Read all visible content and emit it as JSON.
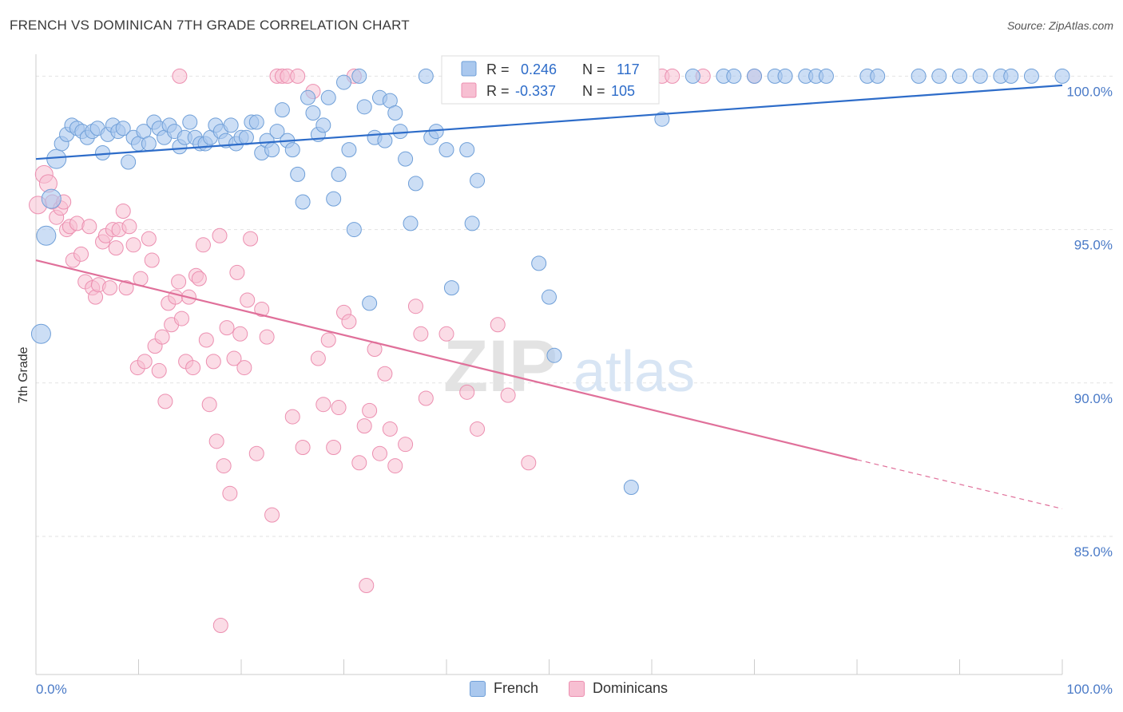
{
  "title": "FRENCH VS DOMINICAN 7TH GRADE CORRELATION CHART",
  "source": "Source: ZipAtlas.com",
  "watermark": {
    "zip": "ZIP",
    "atlas": "atlas"
  },
  "legend": {
    "r_label": "R =",
    "n_label": "N =",
    "french": {
      "r": "0.246",
      "n": "117"
    },
    "dominicans": {
      "r": "-0.337",
      "n": "105"
    }
  },
  "bottom_legend": {
    "french": "French",
    "dominicans": "Dominicans"
  },
  "colors": {
    "french_fill": "#aac8ee",
    "french_stroke": "#6f9fd8",
    "french_line": "#2d6cc9",
    "dominicans_fill": "#f7bfd2",
    "dominicans_stroke": "#ec8fb0",
    "dominicans_line": "#e0709a",
    "tick_text": "#4a7ac7"
  },
  "chart_data": {
    "type": "scatter",
    "title": "FRENCH VS DOMINICAN 7TH GRADE CORRELATION CHART",
    "xlabel": "",
    "ylabel": "7th Grade",
    "x_tick_labels": [
      "0.0%",
      "100.0%"
    ],
    "y_tick_labels": [
      "100.0%",
      "95.0%",
      "90.0%",
      "85.0%"
    ],
    "y_ticks": [
      100,
      95,
      90,
      85
    ],
    "xlim": [
      0,
      100
    ],
    "ylim": [
      80.5,
      100.4
    ],
    "grid": "horizontal dashed",
    "series": [
      {
        "name": "French",
        "trend": {
          "x": [
            0,
            100
          ],
          "y": [
            97.3,
            99.7
          ]
        },
        "points": [
          [
            0.5,
            91.6
          ],
          [
            1,
            94.8
          ],
          [
            1.5,
            96
          ],
          [
            2,
            97.3
          ],
          [
            2.5,
            97.8
          ],
          [
            3,
            98.1
          ],
          [
            3.5,
            98.4
          ],
          [
            4,
            98.3
          ],
          [
            4.5,
            98.2
          ],
          [
            5,
            98
          ],
          [
            5.5,
            98.2
          ],
          [
            6,
            98.3
          ],
          [
            6.5,
            97.5
          ],
          [
            7,
            98.1
          ],
          [
            7.5,
            98.4
          ],
          [
            8,
            98.2
          ],
          [
            8.5,
            98.3
          ],
          [
            9,
            97.2
          ],
          [
            9.5,
            98
          ],
          [
            10,
            97.8
          ],
          [
            10.5,
            98.2
          ],
          [
            11,
            97.8
          ],
          [
            11.5,
            98.5
          ],
          [
            12,
            98.3
          ],
          [
            12.5,
            98
          ],
          [
            13,
            98.4
          ],
          [
            13.5,
            98.2
          ],
          [
            14,
            97.7
          ],
          [
            14.5,
            98
          ],
          [
            15,
            98.5
          ],
          [
            15.5,
            98
          ],
          [
            16,
            97.8
          ],
          [
            16.5,
            97.8
          ],
          [
            17,
            98
          ],
          [
            17.5,
            98.4
          ],
          [
            18,
            98.2
          ],
          [
            18.5,
            97.9
          ],
          [
            19,
            98.4
          ],
          [
            19.5,
            97.8
          ],
          [
            20,
            98
          ],
          [
            20.5,
            98
          ],
          [
            21,
            98.5
          ],
          [
            21.5,
            98.5
          ],
          [
            22,
            97.5
          ],
          [
            22.5,
            97.9
          ],
          [
            23,
            97.6
          ],
          [
            23.5,
            98.2
          ],
          [
            24,
            98.9
          ],
          [
            24.5,
            97.9
          ],
          [
            25,
            97.6
          ],
          [
            25.5,
            96.8
          ],
          [
            26,
            95.9
          ],
          [
            26.5,
            99.3
          ],
          [
            27,
            98.8
          ],
          [
            27.5,
            98.1
          ],
          [
            28,
            98.4
          ],
          [
            28.5,
            99.3
          ],
          [
            29,
            96
          ],
          [
            29.5,
            96.8
          ],
          [
            30,
            99.8
          ],
          [
            30.5,
            97.6
          ],
          [
            31,
            95
          ],
          [
            31.5,
            100
          ],
          [
            32,
            99
          ],
          [
            32.5,
            92.6
          ],
          [
            33,
            98
          ],
          [
            33.5,
            99.3
          ],
          [
            34,
            97.9
          ],
          [
            34.5,
            99.2
          ],
          [
            35,
            98.8
          ],
          [
            35.5,
            98.2
          ],
          [
            36,
            97.3
          ],
          [
            36.5,
            95.2
          ],
          [
            37,
            96.5
          ],
          [
            38,
            100
          ],
          [
            38.5,
            98
          ],
          [
            39,
            98.2
          ],
          [
            40,
            97.6
          ],
          [
            40.5,
            93.1
          ],
          [
            41,
            100
          ],
          [
            42,
            97.6
          ],
          [
            42.5,
            95.2
          ],
          [
            43,
            96.6
          ],
          [
            44,
            100
          ],
          [
            46,
            100
          ],
          [
            47,
            100
          ],
          [
            49,
            93.9
          ],
          [
            49.5,
            100
          ],
          [
            50,
            92.8
          ],
          [
            50.5,
            90.9
          ],
          [
            51,
            100
          ],
          [
            53,
            100
          ],
          [
            55,
            100
          ],
          [
            56,
            100
          ],
          [
            58,
            86.6
          ],
          [
            58.5,
            100
          ],
          [
            60,
            100
          ],
          [
            61,
            98.6
          ],
          [
            64,
            100
          ],
          [
            67,
            100
          ],
          [
            68,
            100
          ],
          [
            70,
            100
          ],
          [
            72,
            100
          ],
          [
            73,
            100
          ],
          [
            75,
            100
          ],
          [
            76,
            100
          ],
          [
            77,
            100
          ],
          [
            81,
            100
          ],
          [
            82,
            100
          ],
          [
            86,
            100
          ],
          [
            88,
            100
          ],
          [
            90,
            100
          ],
          [
            92,
            100
          ],
          [
            94,
            100
          ],
          [
            95,
            100
          ],
          [
            97,
            100
          ],
          [
            100,
            100
          ]
        ]
      },
      {
        "name": "Dominicans",
        "trend": {
          "x": [
            0,
            80
          ],
          "y": [
            94,
            87.5
          ]
        },
        "trend_dashed": {
          "x": [
            80,
            100
          ],
          "y": [
            87.5,
            85.9
          ]
        },
        "points": [
          [
            0.2,
            95.8
          ],
          [
            0.8,
            96.8
          ],
          [
            1.2,
            96.5
          ],
          [
            1.6,
            95.9
          ],
          [
            2,
            95.4
          ],
          [
            2.4,
            95.7
          ],
          [
            2.7,
            95.9
          ],
          [
            3,
            95
          ],
          [
            3.3,
            95.1
          ],
          [
            3.6,
            94
          ],
          [
            4,
            95.2
          ],
          [
            4.4,
            94.2
          ],
          [
            4.8,
            93.3
          ],
          [
            5.2,
            95.1
          ],
          [
            5.5,
            93.1
          ],
          [
            5.8,
            92.8
          ],
          [
            6.1,
            93.2
          ],
          [
            6.5,
            94.6
          ],
          [
            6.8,
            94.8
          ],
          [
            7.2,
            93.1
          ],
          [
            7.5,
            95
          ],
          [
            7.8,
            94.4
          ],
          [
            8.1,
            95
          ],
          [
            8.5,
            95.6
          ],
          [
            8.8,
            93.1
          ],
          [
            9.1,
            95.1
          ],
          [
            9.5,
            94.5
          ],
          [
            9.9,
            90.5
          ],
          [
            10.2,
            93.4
          ],
          [
            10.6,
            90.7
          ],
          [
            11,
            94.7
          ],
          [
            11.3,
            94
          ],
          [
            11.6,
            91.2
          ],
          [
            12,
            90.4
          ],
          [
            12.3,
            91.5
          ],
          [
            12.6,
            89.4
          ],
          [
            12.9,
            92.6
          ],
          [
            13.2,
            91.9
          ],
          [
            13.6,
            92.8
          ],
          [
            13.9,
            93.3
          ],
          [
            14.2,
            92.1
          ],
          [
            14.6,
            90.7
          ],
          [
            14.9,
            92.8
          ],
          [
            15.3,
            90.5
          ],
          [
            15.6,
            93.5
          ],
          [
            15.9,
            93.4
          ],
          [
            16.3,
            94.5
          ],
          [
            16.6,
            91.4
          ],
          [
            16.9,
            89.3
          ],
          [
            17.3,
            90.7
          ],
          [
            17.6,
            88.1
          ],
          [
            17.9,
            94.8
          ],
          [
            18.3,
            87.3
          ],
          [
            18.6,
            91.8
          ],
          [
            18.9,
            86.4
          ],
          [
            19.3,
            90.8
          ],
          [
            19.6,
            93.6
          ],
          [
            19.9,
            91.6
          ],
          [
            20.3,
            90.5
          ],
          [
            20.6,
            92.7
          ],
          [
            20.9,
            94.7
          ],
          [
            21.5,
            87.7
          ],
          [
            22,
            92.4
          ],
          [
            22.5,
            91.5
          ],
          [
            23,
            85.7
          ],
          [
            23.5,
            100
          ],
          [
            24,
            100
          ],
          [
            24.5,
            100
          ],
          [
            25,
            88.9
          ],
          [
            25.5,
            100
          ],
          [
            26,
            87.9
          ],
          [
            27,
            99.5
          ],
          [
            27.5,
            90.8
          ],
          [
            28,
            89.3
          ],
          [
            28.5,
            91.4
          ],
          [
            29,
            87.9
          ],
          [
            29.5,
            89.2
          ],
          [
            30,
            92.3
          ],
          [
            30.5,
            92
          ],
          [
            31,
            100
          ],
          [
            31.5,
            87.4
          ],
          [
            32,
            88.6
          ],
          [
            32.5,
            89.1
          ],
          [
            33,
            91.1
          ],
          [
            33.5,
            87.7
          ],
          [
            34,
            90.3
          ],
          [
            34.5,
            88.5
          ],
          [
            35,
            87.3
          ],
          [
            36,
            88
          ],
          [
            37,
            92.5
          ],
          [
            37.5,
            91.6
          ],
          [
            38,
            89.5
          ],
          [
            40,
            91.6
          ],
          [
            42,
            89.7
          ],
          [
            43,
            88.5
          ],
          [
            45,
            91.9
          ],
          [
            46,
            89.6
          ],
          [
            48,
            87.4
          ],
          [
            18,
            82.1
          ],
          [
            32.2,
            83.4
          ],
          [
            14,
            100
          ],
          [
            61,
            100
          ],
          [
            62,
            100
          ],
          [
            65,
            100
          ],
          [
            70,
            100
          ]
        ]
      }
    ]
  }
}
